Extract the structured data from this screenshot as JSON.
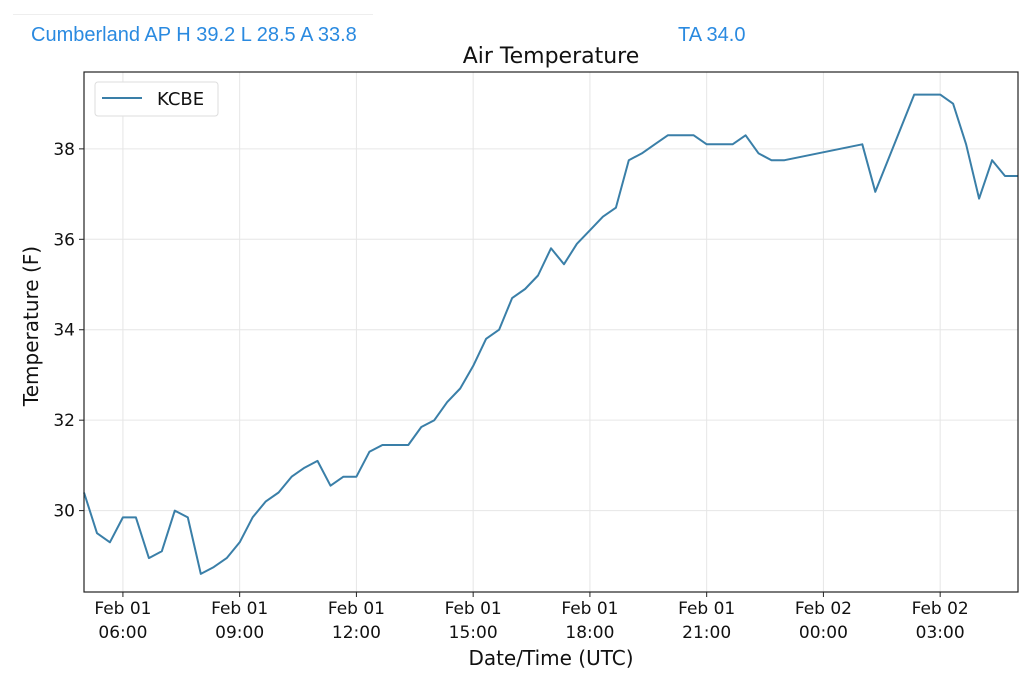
{
  "header": {
    "station_summary": "Cumberland AP H 39.2 L 28.5 A 33.8",
    "ta": "TA 34.0"
  },
  "chart_data": {
    "type": "line",
    "title": "Air Temperature",
    "xlabel": "Date/Time (UTC)",
    "ylabel": "Temperature (F)",
    "legend": {
      "position": "top-left",
      "entries": [
        "KCBE"
      ]
    },
    "grid": true,
    "xlim": [
      "Feb 01 05:00",
      "Feb 02 05:00"
    ],
    "ylim": [
      28.2,
      39.7
    ],
    "yticks": [
      30,
      32,
      34,
      36,
      38
    ],
    "xticks": [
      {
        "date": "Feb 01",
        "time": "06:00"
      },
      {
        "date": "Feb 01",
        "time": "09:00"
      },
      {
        "date": "Feb 01",
        "time": "12:00"
      },
      {
        "date": "Feb 01",
        "time": "15:00"
      },
      {
        "date": "Feb 01",
        "time": "18:00"
      },
      {
        "date": "Feb 01",
        "time": "21:00"
      },
      {
        "date": "Feb 02",
        "time": "00:00"
      },
      {
        "date": "Feb 02",
        "time": "03:00"
      }
    ],
    "series": [
      {
        "name": "KCBE",
        "color": "#3a7fa8",
        "x": [
          "Feb 01 05:00",
          "Feb 01 05:20",
          "Feb 01 05:40",
          "Feb 01 06:00",
          "Feb 01 06:20",
          "Feb 01 06:40",
          "Feb 01 07:00",
          "Feb 01 07:20",
          "Feb 01 07:40",
          "Feb 01 08:00",
          "Feb 01 08:20",
          "Feb 01 08:40",
          "Feb 01 09:00",
          "Feb 01 09:20",
          "Feb 01 09:40",
          "Feb 01 10:00",
          "Feb 01 10:20",
          "Feb 01 10:40",
          "Feb 01 11:00",
          "Feb 01 11:20",
          "Feb 01 11:40",
          "Feb 01 12:00",
          "Feb 01 12:20",
          "Feb 01 12:40",
          "Feb 01 13:00",
          "Feb 01 13:20",
          "Feb 01 13:40",
          "Feb 01 14:00",
          "Feb 01 14:20",
          "Feb 01 14:40",
          "Feb 01 15:00",
          "Feb 01 15:20",
          "Feb 01 15:40",
          "Feb 01 16:00",
          "Feb 01 16:20",
          "Feb 01 16:40",
          "Feb 01 17:00",
          "Feb 01 17:20",
          "Feb 01 17:40",
          "Feb 01 18:00",
          "Feb 01 18:20",
          "Feb 01 18:40",
          "Feb 01 19:00",
          "Feb 01 19:20",
          "Feb 01 19:40",
          "Feb 01 20:00",
          "Feb 01 20:20",
          "Feb 01 20:40",
          "Feb 01 21:00",
          "Feb 01 21:20",
          "Feb 01 21:40",
          "Feb 01 22:00",
          "Feb 01 22:20",
          "Feb 01 22:40",
          "Feb 01 23:00",
          "Feb 02 01:00",
          "Feb 02 01:20",
          "Feb 02 02:20",
          "Feb 02 03:00",
          "Feb 02 03:20",
          "Feb 02 03:40",
          "Feb 02 04:00",
          "Feb 02 04:20",
          "Feb 02 04:40",
          "Feb 02 05:00"
        ],
        "values": [
          30.4,
          29.5,
          29.3,
          29.85,
          29.85,
          28.95,
          29.1,
          30.0,
          29.85,
          28.6,
          28.75,
          28.95,
          29.3,
          29.85,
          30.2,
          30.4,
          30.75,
          30.95,
          31.1,
          30.55,
          30.75,
          30.75,
          31.3,
          31.45,
          31.45,
          31.45,
          31.85,
          32.0,
          32.4,
          32.7,
          33.2,
          33.8,
          34.0,
          34.7,
          34.9,
          35.2,
          35.8,
          35.45,
          35.9,
          36.2,
          36.5,
          36.7,
          37.75,
          37.9,
          38.1,
          38.3,
          38.3,
          38.3,
          38.1,
          38.1,
          38.1,
          38.3,
          37.9,
          37.75,
          37.75,
          38.1,
          37.05,
          39.2,
          39.2,
          39.0,
          38.1,
          36.9,
          37.75,
          37.4,
          37.4
        ]
      }
    ]
  }
}
